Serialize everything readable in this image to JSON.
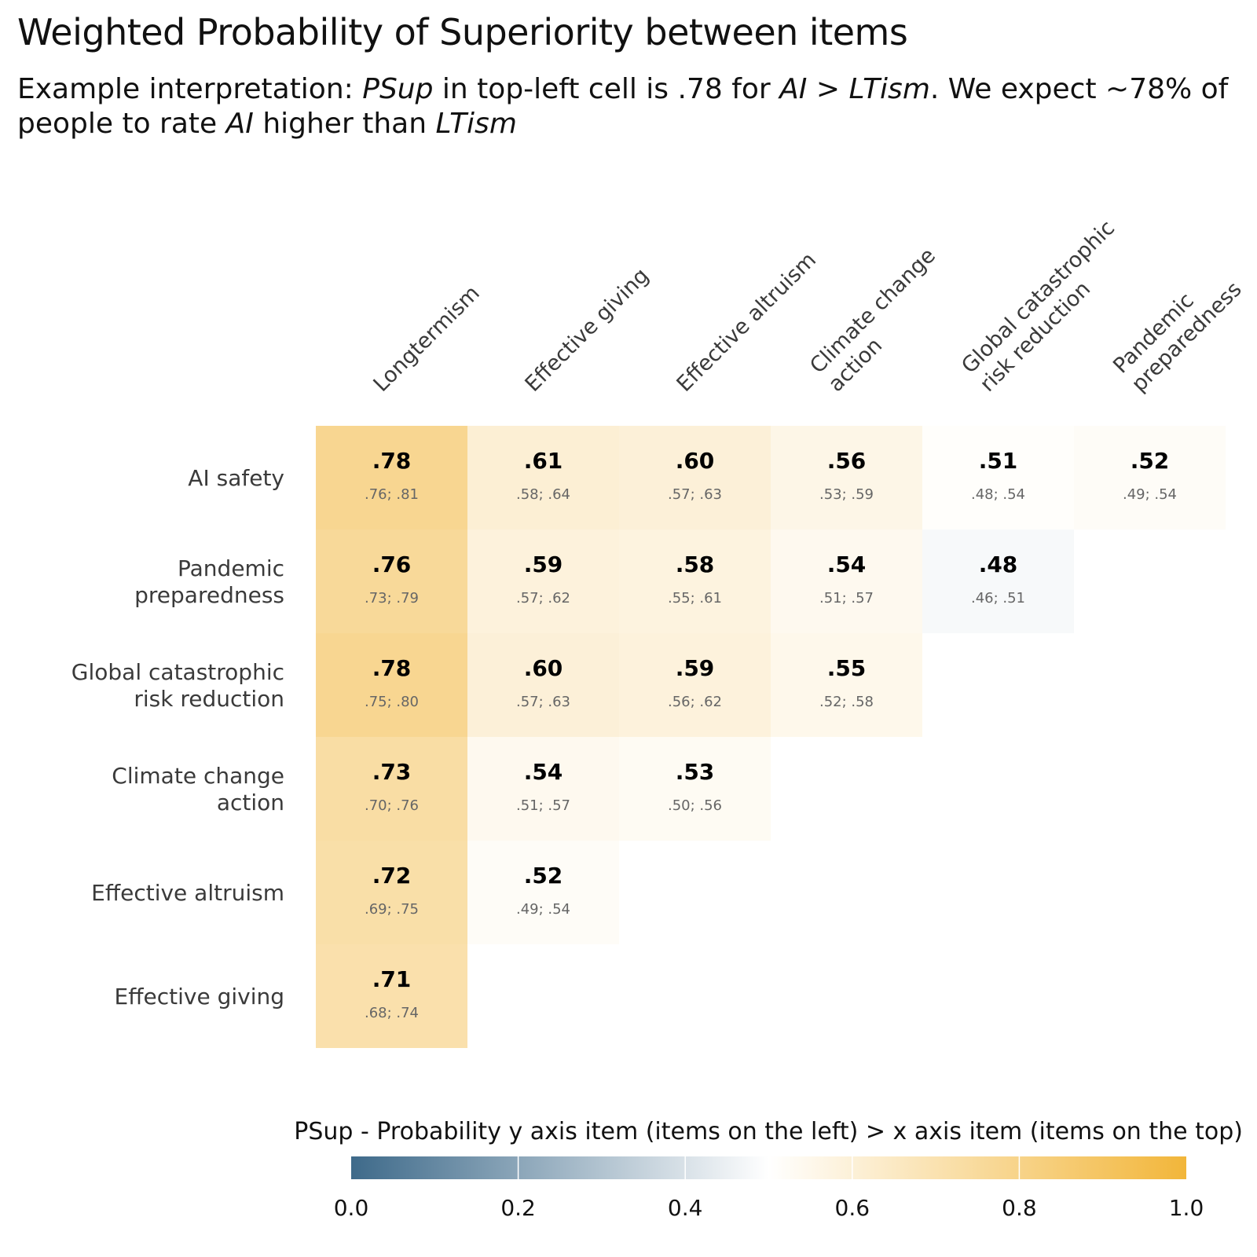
{
  "title": "Weighted Probability of Superiority between items",
  "subtitle": {
    "p1": "Example interpretation: ",
    "i1": "PSup",
    "p2": " in top-left cell is .78 for ",
    "i2": "AI",
    "p3": " > ",
    "i3": "LTism",
    "p4": ". We expect ~78% of people to rate ",
    "i4": "AI",
    "p5": " higher than ",
    "i5": "LTism"
  },
  "chart_data": {
    "type": "heatmap",
    "x_categories": [
      [
        "Longtermism"
      ],
      [
        "Effective giving"
      ],
      [
        "Effective altruism"
      ],
      [
        "Climate change",
        "action"
      ],
      [
        "Global catastrophic",
        "risk reduction"
      ],
      [
        "Pandemic",
        "preparedness"
      ]
    ],
    "y_categories": [
      [
        "AI safety"
      ],
      [
        "Pandemic",
        "preparedness"
      ],
      [
        "Global catastrophic",
        "risk reduction"
      ],
      [
        "Climate change",
        "action"
      ],
      [
        "Effective altruism"
      ],
      [
        "Effective giving"
      ]
    ],
    "cells": [
      [
        {
          "v": 0.78,
          "label": ".78",
          "ci": ".76; .81"
        },
        {
          "v": 0.61,
          "label": ".61",
          "ci": ".58; .64"
        },
        {
          "v": 0.6,
          "label": ".60",
          "ci": ".57; .63"
        },
        {
          "v": 0.56,
          "label": ".56",
          "ci": ".53; .59"
        },
        {
          "v": 0.51,
          "label": ".51",
          "ci": ".48; .54"
        },
        {
          "v": 0.52,
          "label": ".52",
          "ci": ".49; .54"
        }
      ],
      [
        {
          "v": 0.76,
          "label": ".76",
          "ci": ".73; .79"
        },
        {
          "v": 0.59,
          "label": ".59",
          "ci": ".57; .62"
        },
        {
          "v": 0.58,
          "label": ".58",
          "ci": ".55; .61"
        },
        {
          "v": 0.54,
          "label": ".54",
          "ci": ".51; .57"
        },
        {
          "v": 0.48,
          "label": ".48",
          "ci": ".46; .51"
        }
      ],
      [
        {
          "v": 0.78,
          "label": ".78",
          "ci": ".75; .80"
        },
        {
          "v": 0.6,
          "label": ".60",
          "ci": ".57; .63"
        },
        {
          "v": 0.59,
          "label": ".59",
          "ci": ".56; .62"
        },
        {
          "v": 0.55,
          "label": ".55",
          "ci": ".52; .58"
        }
      ],
      [
        {
          "v": 0.73,
          "label": ".73",
          "ci": ".70; .76"
        },
        {
          "v": 0.54,
          "label": ".54",
          "ci": ".51; .57"
        },
        {
          "v": 0.53,
          "label": ".53",
          "ci": ".50; .56"
        }
      ],
      [
        {
          "v": 0.72,
          "label": ".72",
          "ci": ".69; .75"
        },
        {
          "v": 0.52,
          "label": ".52",
          "ci": ".49; .54"
        }
      ],
      [
        {
          "v": 0.71,
          "label": ".71",
          "ci": ".68; .74"
        }
      ]
    ],
    "legend": {
      "title": "PSup - Probability y axis item (items on the left) > x axis item (items on the top)",
      "range": [
        0,
        1
      ],
      "ticks": [
        "0.0",
        "0.2",
        "0.4",
        "0.6",
        "0.8",
        "1.0"
      ],
      "colors": {
        "low": "#3e6a8a",
        "mid": "#ffffff",
        "high": "#f2b63a"
      },
      "position": "bottom"
    }
  }
}
